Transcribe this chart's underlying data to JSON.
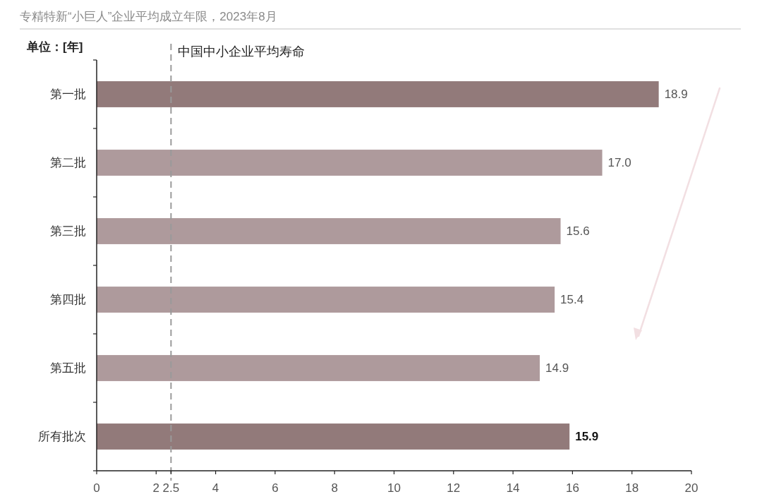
{
  "chart_data": {
    "type": "bar",
    "orientation": "horizontal",
    "title": "专精特新“小巨人”企业平均成立年限，2023年8月",
    "xlabel": "单位：[年]",
    "categories": [
      "第一批",
      "第二批",
      "第三批",
      "第四批",
      "第五批",
      "所有批次"
    ],
    "values": [
      18.9,
      17.0,
      15.6,
      15.4,
      14.9,
      15.9
    ],
    "colors": [
      "#927a7a",
      "#ae9a9c",
      "#ae9a9c",
      "#ae9a9c",
      "#ae9a9c",
      "#927a7a"
    ],
    "value_labels": [
      "18.9",
      "17.0",
      "15.6",
      "15.4",
      "14.9",
      "15.9"
    ],
    "xlim": [
      0,
      20
    ],
    "xticks": [
      0,
      2,
      2.5,
      4,
      6,
      8,
      10,
      12,
      14,
      16,
      18,
      20
    ],
    "ref_lines": [
      {
        "axis": "x",
        "value": 2.5,
        "label": "中国中小企业平均寿命",
        "color": "#9a9a9a",
        "line_style": "dashed"
      }
    ]
  }
}
